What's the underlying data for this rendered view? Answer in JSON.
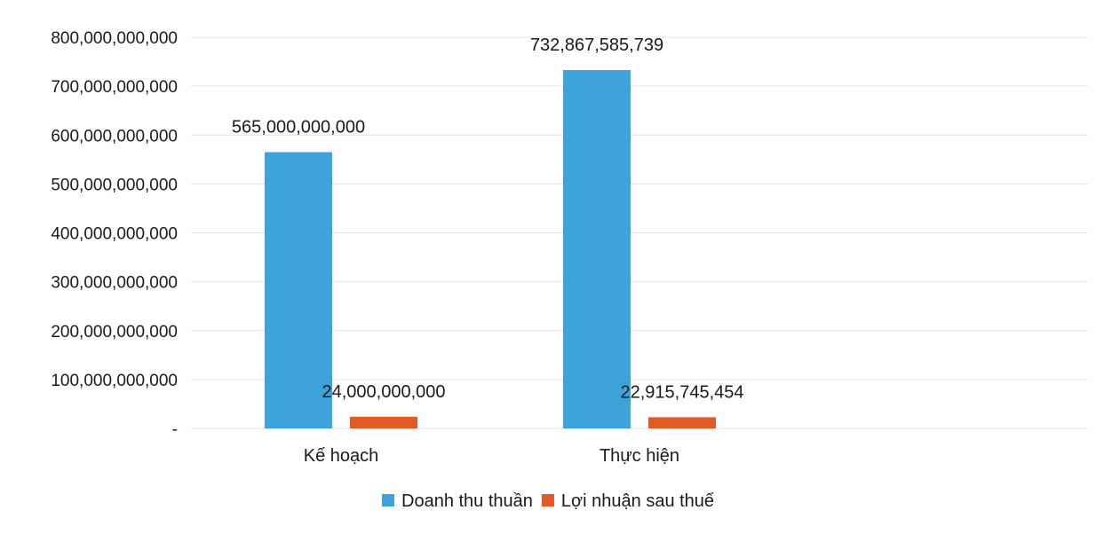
{
  "chart_data": {
    "type": "bar",
    "categories": [
      "Kế hoạch",
      "Thực hiện"
    ],
    "series": [
      {
        "name": "Doanh thu thuần",
        "color": "#3ea3d8",
        "values": [
          565000000000,
          732867585739
        ],
        "labels": [
          "565,000,000,000",
          "732,867,585,739"
        ]
      },
      {
        "name": "Lợi nhuận sau thuế",
        "color": "#e25a26",
        "values": [
          24000000000,
          22915745454
        ],
        "labels": [
          "24,000,000,000",
          "22,915,745,454"
        ]
      }
    ],
    "ylim": [
      0,
      800000000000
    ],
    "yticks": [
      0,
      100000000000,
      200000000000,
      300000000000,
      400000000000,
      500000000000,
      600000000000,
      700000000000,
      800000000000
    ],
    "ytick_labels": [
      "-",
      "100,000,000,000",
      "200,000,000,000",
      "300,000,000,000",
      "400,000,000,000",
      "500,000,000,000",
      "600,000,000,000",
      "700,000,000,000",
      "800,000,000,000"
    ],
    "grid": true,
    "legend": "bottom"
  }
}
